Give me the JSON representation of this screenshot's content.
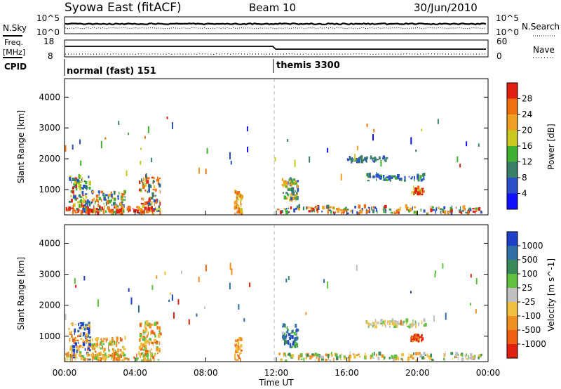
{
  "header": {
    "station": "Syowa East (fitACF)",
    "beam": "Beam 10",
    "date": "30/Jun/2010"
  },
  "strips": {
    "nsky_label": "N.Sky",
    "nsky_ticks": [
      "10^5",
      "10^0"
    ],
    "nsearch_label": "N.Search",
    "nsearch_ticks": [
      "10^5",
      "10^0"
    ],
    "freq_label": "Freq.",
    "freq_unit": "[MHz]",
    "freq_ticks": [
      "18",
      "8"
    ],
    "nave_label": "Nave",
    "nave_ticks": [
      "60",
      "0"
    ],
    "cpid_label": "CPID",
    "cpid_modes": [
      {
        "name": "normal (fast) 151",
        "start_hour": 0
      },
      {
        "name": "themis 3300",
        "start_hour": 12
      }
    ]
  },
  "chart_data": [
    {
      "type": "heatmap",
      "quantity": "Power",
      "xlabel": "",
      "ylabel": "Slant Range [km]",
      "xlim": [
        0,
        24
      ],
      "ylim": [
        180,
        4600
      ],
      "yticks": [
        1000,
        2000,
        3000,
        4000
      ],
      "colorbar_label": "Power [dB]",
      "colorbar_ticks": [
        "4",
        "8",
        "12",
        "16",
        "20",
        "24",
        "28"
      ],
      "colorbar_colors": [
        "#1010ff",
        "#2a4fc8",
        "#3a7f6a",
        "#40b030",
        "#c8c820",
        "#f0a020",
        "#f07010",
        "#e02010"
      ],
      "clusters": [
        {
          "x0": 0.2,
          "x1": 1.4,
          "r0": 180,
          "r1": 1400,
          "levels": [
            1,
            2,
            3,
            4,
            7
          ]
        },
        {
          "x0": 1.5,
          "x1": 3.4,
          "r0": 180,
          "r1": 900,
          "levels": [
            1,
            2,
            3,
            5,
            6
          ]
        },
        {
          "x0": 4.2,
          "x1": 5.4,
          "r0": 180,
          "r1": 1400,
          "levels": [
            1,
            2,
            4,
            6,
            7
          ]
        },
        {
          "x0": 0.0,
          "x1": 5.0,
          "r0": 180,
          "r1": 400,
          "levels": [
            5,
            6,
            7,
            7,
            6
          ]
        },
        {
          "x0": 9.6,
          "x1": 10.0,
          "r0": 180,
          "r1": 900,
          "levels": [
            4,
            5,
            6
          ]
        },
        {
          "x0": 12.3,
          "x1": 13.2,
          "r0": 600,
          "r1": 1300,
          "levels": [
            1,
            2,
            3,
            4,
            5
          ]
        },
        {
          "x0": 12.0,
          "x1": 23.6,
          "r0": 180,
          "r1": 400,
          "levels": [
            1,
            2,
            3,
            5,
            6,
            7
          ]
        },
        {
          "x0": 17.0,
          "x1": 20.4,
          "r0": 1250,
          "r1": 1450,
          "levels": [
            1,
            2,
            1,
            3
          ]
        },
        {
          "x0": 16.0,
          "x1": 18.2,
          "r0": 1850,
          "r1": 2000,
          "levels": [
            1,
            2
          ]
        },
        {
          "x0": 19.6,
          "x1": 20.3,
          "r0": 800,
          "r1": 1000,
          "levels": [
            4,
            6,
            7
          ]
        }
      ]
    },
    {
      "type": "heatmap",
      "quantity": "Velocity",
      "xlabel": "Time UT",
      "ylabel": "Slant Range [km]",
      "xlim": [
        0,
        24
      ],
      "ylim": [
        180,
        4600
      ],
      "yticks": [
        1000,
        2000,
        3000,
        4000
      ],
      "xticks": [
        "00:00",
        "04:00",
        "08:00",
        "12:00",
        "16:00",
        "20:00",
        "00:00"
      ],
      "colorbar_label": "Velocity [m s^-1]",
      "colorbar_ticks": [
        "1000",
        "500",
        "100",
        "25",
        "-25",
        "-100",
        "-500",
        "-1000"
      ],
      "colorbar_colors": [
        "#1f3fc8",
        "#2f6fa8",
        "#3a8a5a",
        "#60c040",
        "#c0c0c0",
        "#f0c040",
        "#f09020",
        "#f06010",
        "#e02010"
      ],
      "clusters": [
        {
          "x0": 0.2,
          "x1": 1.4,
          "r0": 180,
          "r1": 1400,
          "levels": [
            0,
            1,
            5,
            6,
            7
          ]
        },
        {
          "x0": 1.5,
          "x1": 3.4,
          "r0": 180,
          "r1": 900,
          "levels": [
            5,
            6,
            7,
            3
          ]
        },
        {
          "x0": 4.2,
          "x1": 5.4,
          "r0": 180,
          "r1": 1400,
          "levels": [
            5,
            6,
            7,
            3
          ]
        },
        {
          "x0": 0.0,
          "x1": 5.0,
          "r0": 180,
          "r1": 400,
          "levels": [
            6,
            7,
            5,
            3
          ]
        },
        {
          "x0": 9.6,
          "x1": 10.0,
          "r0": 180,
          "r1": 900,
          "levels": [
            6,
            7,
            5
          ]
        },
        {
          "x0": 12.3,
          "x1": 13.2,
          "r0": 600,
          "r1": 1300,
          "levels": [
            0,
            1,
            2,
            3
          ]
        },
        {
          "x0": 12.0,
          "x1": 23.6,
          "r0": 180,
          "r1": 400,
          "levels": [
            3,
            4,
            5,
            6,
            2
          ]
        },
        {
          "x0": 17.0,
          "x1": 20.4,
          "r0": 1250,
          "r1": 1450,
          "levels": [
            4,
            4,
            3,
            5
          ]
        },
        {
          "x0": 19.6,
          "x1": 20.3,
          "r0": 800,
          "r1": 1000,
          "levels": [
            6,
            7,
            8
          ]
        }
      ]
    }
  ]
}
